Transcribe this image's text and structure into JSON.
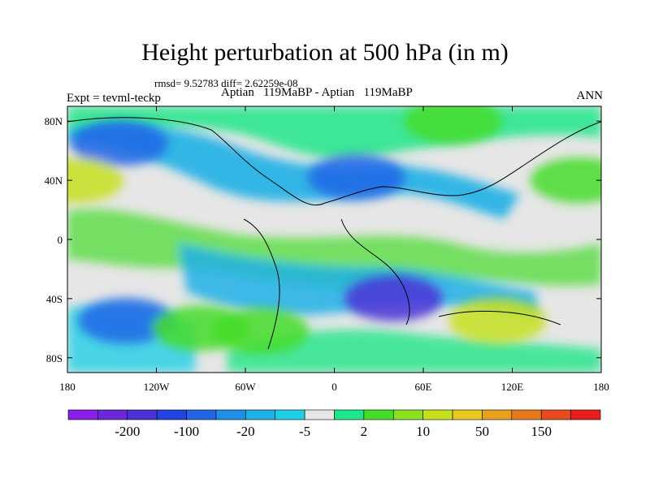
{
  "chart_data": {
    "type": "heatmap",
    "title": "Height perturbation at 500 hPa (in m)",
    "stats": "rmsd= 9.52783 diff= 2.62259e-08",
    "experiment_label": "Expt = tevml-teckp",
    "center_label": "Aptian   119MaBP - Aptian   119MaBP",
    "season": "ANN",
    "x_ticks": [
      "180",
      "120W",
      "60W",
      "0",
      "60E",
      "120E",
      "180"
    ],
    "y_ticks": [
      "80N",
      "40N",
      "0",
      "40S",
      "80S"
    ],
    "xlim": [
      -180,
      180
    ],
    "ylim": [
      -90,
      90
    ],
    "colorbar_levels": [
      "-200",
      "-100",
      "-20",
      "-5",
      "2",
      "10",
      "50",
      "150"
    ],
    "colorbar_colors": [
      "#8a1ee6",
      "#6a28d9",
      "#4a33d6",
      "#2244e0",
      "#2266e6",
      "#1e8ee6",
      "#1eb0e6",
      "#1ed0e6",
      "#e6e6e6",
      "#1ee68a",
      "#44dc28",
      "#8ae01e",
      "#c6e01e",
      "#e6c81e",
      "#e6a01e",
      "#e6781e",
      "#e64a1e",
      "#e61e1e"
    ],
    "anomaly_regions": [
      {
        "lon": -145,
        "lat": 65,
        "value": -20
      },
      {
        "lon": -140,
        "lat": -55,
        "value": -20
      },
      {
        "lon": 15,
        "lat": 42,
        "value": -20
      },
      {
        "lon": 40,
        "lat": -40,
        "value": -100
      },
      {
        "lon": 80,
        "lat": 80,
        "value": 10
      },
      {
        "lon": 165,
        "lat": 40,
        "value": 10
      },
      {
        "lon": 110,
        "lat": -55,
        "value": 50
      },
      {
        "lon": -50,
        "lat": -62,
        "value": 10
      },
      {
        "lon": -175,
        "lat": 40,
        "value": 50
      },
      {
        "lon": -90,
        "lat": -60,
        "value": 10
      }
    ]
  }
}
